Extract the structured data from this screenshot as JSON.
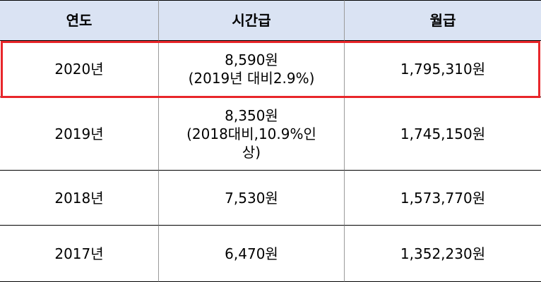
{
  "table": {
    "header": [
      "연도",
      "시간급",
      "월급"
    ],
    "rows": [
      [
        [
          "2020년"
        ],
        [
          "8,590원",
          "(2019년  대비2.9%)"
        ],
        [
          "1,795,310원"
        ]
      ],
      [
        [
          "2019년"
        ],
        [
          "8,350원",
          "(2018대비,10.9%인",
          "상)"
        ],
        [
          "1,745,150원"
        ]
      ],
      [
        [
          "2018년"
        ],
        [
          "7,530원"
        ],
        [
          "1,573,770원"
        ]
      ],
      [
        [
          "2017년"
        ],
        [
          "6,470원"
        ],
        [
          "1,352,230원"
        ]
      ]
    ]
  }
}
